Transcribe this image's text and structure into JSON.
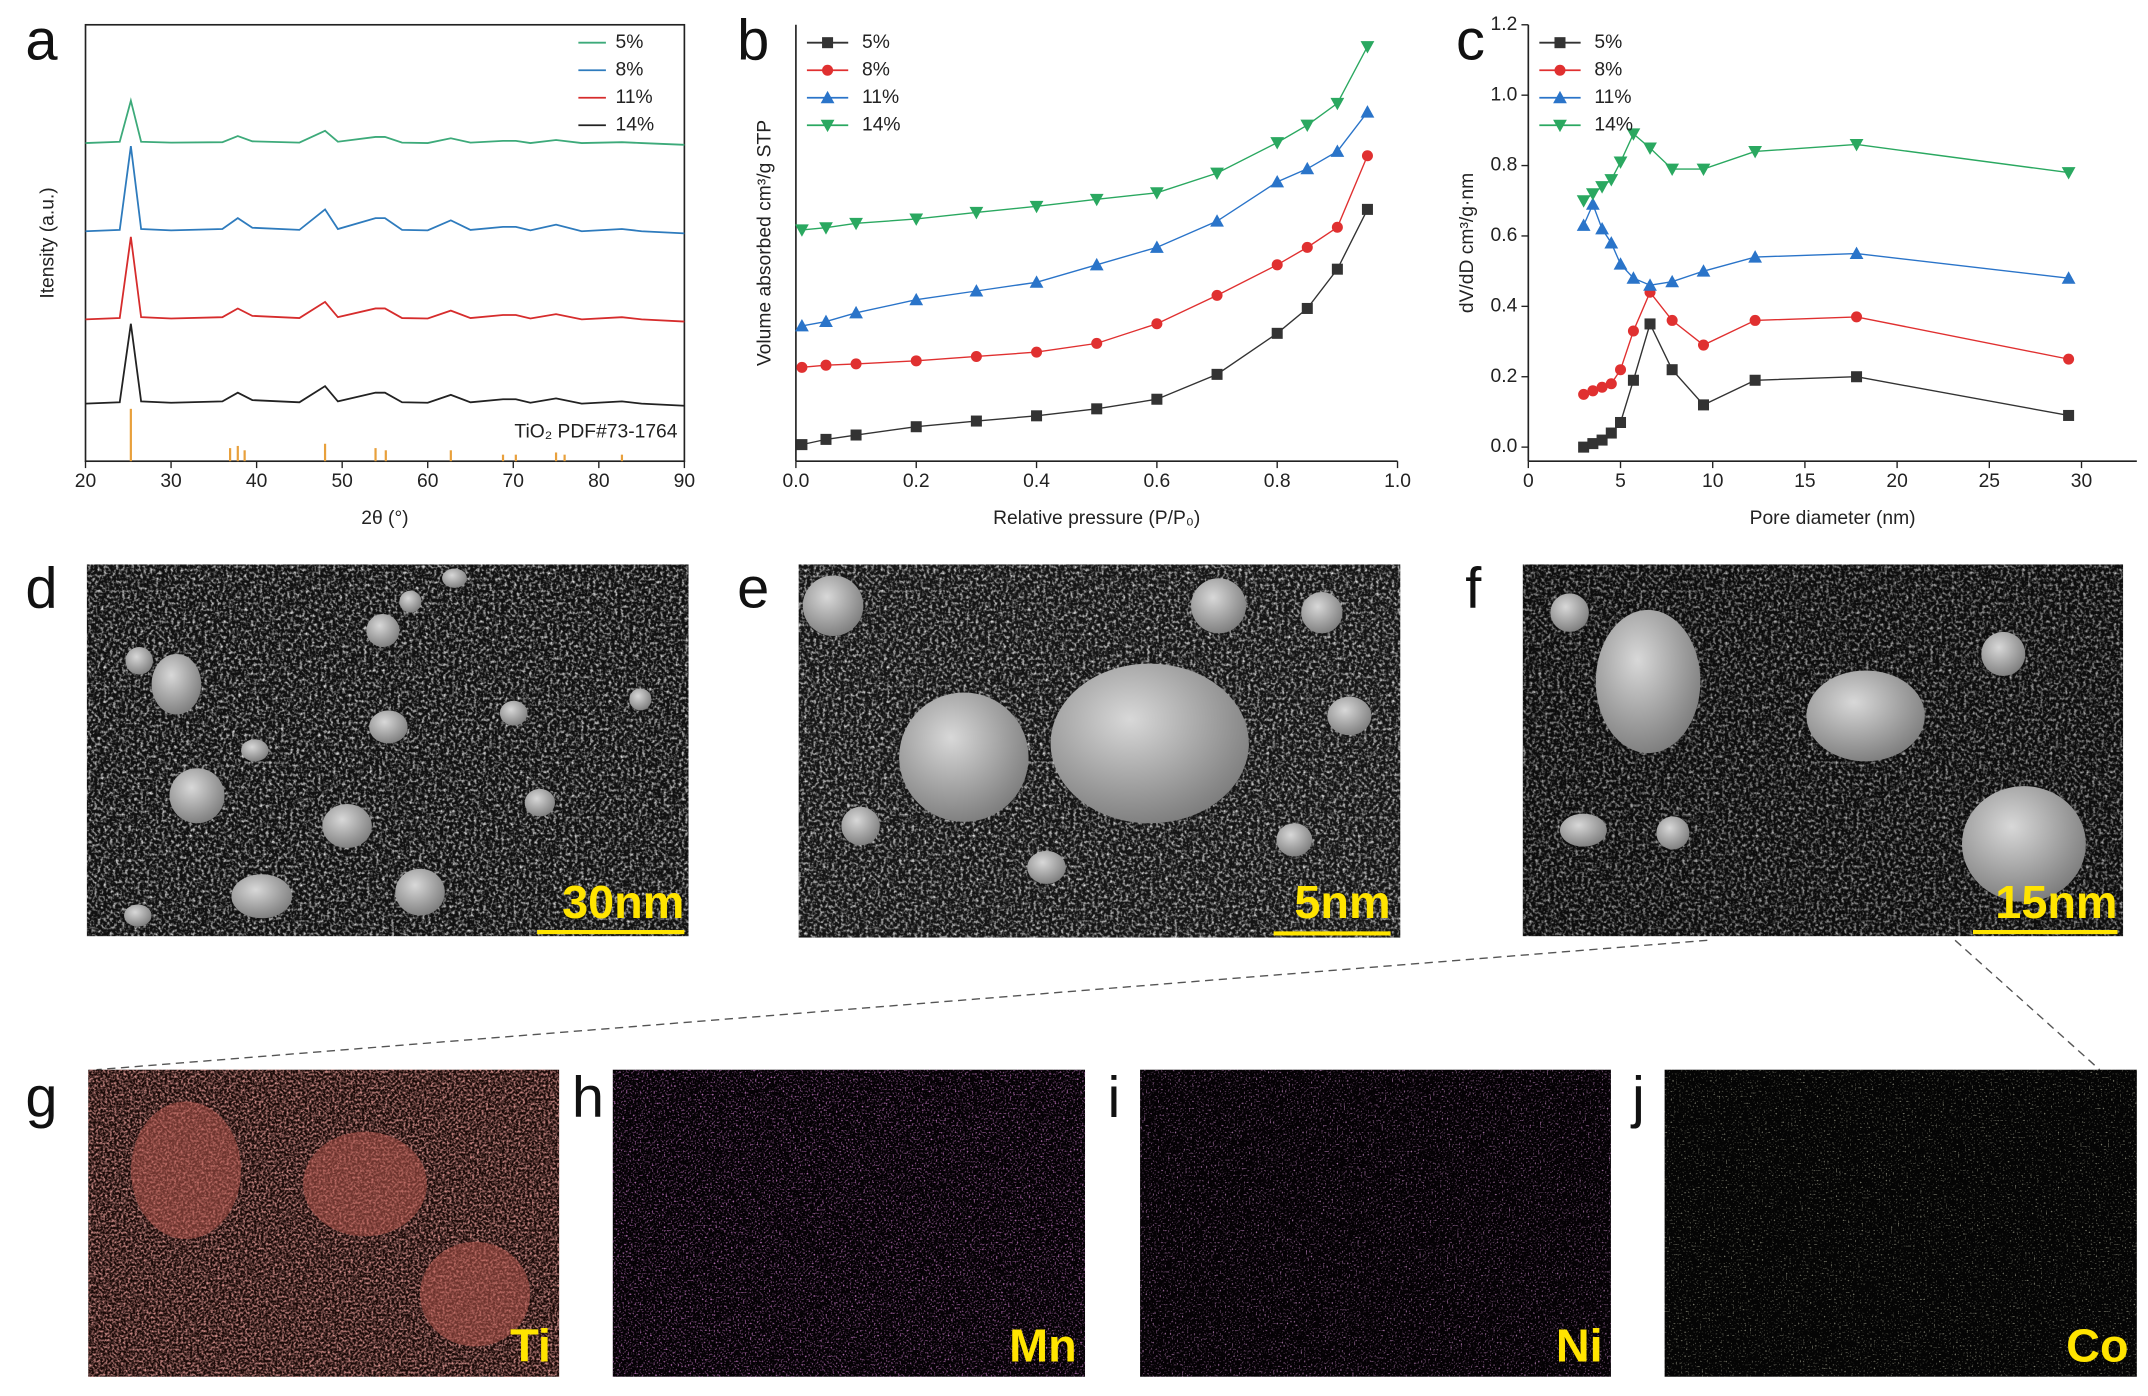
{
  "chart_data": [
    {
      "type": "line",
      "label": "a",
      "xlabel": "2θ (°)",
      "ylabel": "Itensity (a.u.)",
      "x": [
        20,
        24,
        25.3,
        26.5,
        30,
        36,
        37.8,
        39.5,
        45,
        48,
        49.5,
        53.9,
        55,
        57,
        60,
        62.7,
        65,
        68.8,
        70.3,
        72,
        75,
        78,
        82.7,
        85,
        90
      ],
      "xlim": [
        20,
        90
      ],
      "xticks": [
        20,
        30,
        40,
        50,
        60,
        70,
        80,
        90
      ],
      "ylim": [
        0,
        100
      ],
      "legend": "upper right",
      "series": [
        {
          "name": "5%",
          "color": "#3daa7a",
          "values": [
            72.9,
            73.2,
            82.6,
            73.2,
            73.0,
            73.1,
            74.5,
            73.3,
            73.0,
            75.7,
            73.2,
            74.3,
            74.3,
            73.0,
            72.9,
            74.0,
            73.0,
            73.4,
            73.4,
            72.9,
            73.6,
            72.9,
            73.1,
            72.9,
            72.5
          ]
        },
        {
          "name": "8%",
          "color": "#2e7bbd",
          "values": [
            52.7,
            53.0,
            72.2,
            53.2,
            52.9,
            53.2,
            55.7,
            53.5,
            53.0,
            57.7,
            53.2,
            55.7,
            55.7,
            53.0,
            52.9,
            55.2,
            53.0,
            53.7,
            53.7,
            52.9,
            54.2,
            52.7,
            53.2,
            52.7,
            52.2
          ]
        },
        {
          "name": "11%",
          "color": "#d62c2c",
          "values": [
            32.5,
            32.8,
            51.4,
            33.0,
            32.7,
            33.0,
            35.0,
            33.3,
            32.8,
            36.5,
            33.0,
            35.0,
            35.0,
            32.8,
            32.7,
            34.5,
            32.8,
            33.5,
            33.5,
            32.7,
            33.7,
            32.5,
            33.0,
            32.5,
            32.0
          ]
        },
        {
          "name": "14%",
          "color": "#222222",
          "values": [
            13.2,
            13.5,
            31.5,
            13.7,
            13.4,
            13.7,
            15.7,
            14.0,
            13.5,
            17.2,
            13.7,
            15.7,
            15.7,
            13.5,
            13.4,
            15.2,
            13.5,
            14.2,
            14.2,
            13.4,
            14.4,
            13.2,
            13.7,
            13.2,
            12.7
          ]
        }
      ],
      "reference": {
        "name": "TiO₂ PDF#73-1764",
        "color": "#e8a03c",
        "x": [
          25.3,
          36.9,
          37.8,
          38.6,
          48.0,
          53.9,
          55.1,
          62.7,
          68.8,
          70.3,
          75.0,
          76.0,
          82.7
        ],
        "values": [
          12,
          3,
          3.5,
          2.5,
          4,
          3,
          2.5,
          2.5,
          1.5,
          1.5,
          2,
          1.5,
          1.5
        ]
      }
    },
    {
      "type": "line",
      "label": "b",
      "xlabel": "Relative pressure (P/P₀)",
      "ylabel": "Volume absorbed cm³/g STP",
      "x": [
        0.01,
        0.05,
        0.1,
        0.2,
        0.3,
        0.4,
        0.5,
        0.6,
        0.7,
        0.8,
        0.85,
        0.9,
        0.95
      ],
      "xlim": [
        0,
        1
      ],
      "xticks": [
        {
          "value": 0,
          "label": "0.0"
        },
        0.2,
        0.4,
        0.6,
        0.8,
        {
          "value": 1,
          "label": "1.0"
        }
      ],
      "ylim": [
        0,
        100
      ],
      "legend": "upper left",
      "series": [
        {
          "name": "5%",
          "color": "#333333",
          "marker": "square",
          "values": [
            3.8,
            5,
            6,
            7.9,
            9.2,
            10.4,
            12,
            14.2,
            19.9,
            29.3,
            35,
            44,
            57.7
          ]
        },
        {
          "name": "8%",
          "color": "#e03030",
          "marker": "circle",
          "values": [
            21.5,
            22,
            22.3,
            23,
            24,
            25,
            27,
            31.5,
            38,
            45,
            49,
            53.6,
            70
          ]
        },
        {
          "name": "11%",
          "color": "#2a74c9",
          "marker": "triangle-up",
          "values": [
            31,
            32,
            34,
            37,
            39,
            41,
            45,
            49,
            55,
            64,
            67,
            71,
            80
          ]
        },
        {
          "name": "14%",
          "color": "#2aa860",
          "marker": "triangle-down",
          "values": [
            53,
            53.5,
            54.5,
            55.5,
            57,
            58.4,
            60,
            61.5,
            66,
            73,
            77,
            82,
            95
          ]
        }
      ]
    },
    {
      "type": "line",
      "label": "c",
      "xlabel": "Pore diameter (nm)",
      "ylabel": "dV/dD cm³/g·nm",
      "x": [
        3,
        3.5,
        4,
        4.5,
        5,
        5.7,
        6.6,
        7.8,
        9.5,
        12.3,
        17.8,
        29.3
      ],
      "xlim": [
        0,
        33
      ],
      "xticks": [
        0,
        5,
        10,
        15,
        20,
        25,
        30
      ],
      "ylim": [
        -0.04,
        1.2
      ],
      "yticks": [
        {
          "value": 0,
          "label": "0.0"
        },
        0.2,
        0.4,
        0.6,
        0.8,
        {
          "value": 1,
          "label": "1.0"
        },
        1.2
      ],
      "legend": "upper left",
      "series": [
        {
          "name": "5%",
          "color": "#333333",
          "marker": "square",
          "values": [
            0.0,
            0.01,
            0.02,
            0.04,
            0.07,
            0.19,
            0.35,
            0.22,
            0.12,
            0.19,
            0.2,
            0.09
          ]
        },
        {
          "name": "8%",
          "color": "#e03030",
          "marker": "circle",
          "values": [
            0.15,
            0.16,
            0.17,
            0.18,
            0.22,
            0.33,
            0.44,
            0.36,
            0.29,
            0.36,
            0.37,
            0.25
          ]
        },
        {
          "name": "11%",
          "color": "#2a74c9",
          "marker": "triangle-up",
          "values": [
            0.63,
            0.69,
            0.62,
            0.58,
            0.52,
            0.48,
            0.46,
            0.47,
            0.5,
            0.54,
            0.55,
            0.48
          ]
        },
        {
          "name": "14%",
          "color": "#2aa860",
          "marker": "triangle-down",
          "values": [
            0.7,
            0.72,
            0.74,
            0.76,
            0.81,
            0.89,
            0.85,
            0.79,
            0.79,
            0.84,
            0.86,
            0.78
          ]
        }
      ]
    }
  ],
  "images": [
    {
      "label": "d",
      "scale_bar": "30nm"
    },
    {
      "label": "e",
      "scale_bar": "5nm"
    },
    {
      "label": "f",
      "scale_bar": "15nm"
    },
    {
      "label": "g",
      "element": "Ti"
    },
    {
      "label": "h",
      "element": "Mn"
    },
    {
      "label": "i",
      "element": "Ni"
    },
    {
      "label": "j",
      "element": "Co"
    }
  ]
}
